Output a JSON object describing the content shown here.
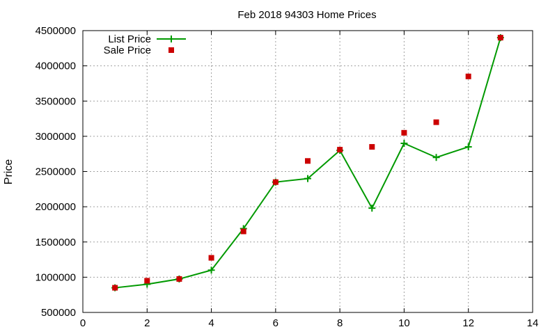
{
  "chart_data": {
    "type": "line",
    "title": "Feb 2018 94303 Home Prices",
    "xlabel": "",
    "ylabel": "Price",
    "xlim": [
      0,
      14
    ],
    "ylim": [
      500000,
      4500000
    ],
    "xticks": [
      0,
      2,
      4,
      6,
      8,
      10,
      12,
      14
    ],
    "yticks": [
      500000,
      1000000,
      1500000,
      2000000,
      2500000,
      3000000,
      3500000,
      4000000,
      4500000
    ],
    "grid": true,
    "legend_position": "top-left",
    "series": [
      {
        "name": "List Price",
        "style": "line-with-plus-markers",
        "color": "#009900",
        "x": [
          1,
          2,
          3,
          4,
          5,
          6,
          7,
          8,
          9,
          10,
          11,
          12,
          13
        ],
        "y": [
          850000,
          900000,
          975000,
          1100000,
          1690000,
          2350000,
          2400000,
          2800000,
          1980000,
          2900000,
          2700000,
          2850000,
          4400000
        ]
      },
      {
        "name": "Sale Price",
        "style": "square-markers",
        "color": "#cc0000",
        "x": [
          1,
          2,
          3,
          4,
          5,
          6,
          7,
          8,
          9,
          10,
          11,
          12,
          13
        ],
        "y": [
          850000,
          950000,
          975000,
          1275000,
          1650000,
          2350000,
          2650000,
          2810000,
          2850000,
          3050000,
          3200000,
          3850000,
          4400000
        ]
      }
    ]
  }
}
